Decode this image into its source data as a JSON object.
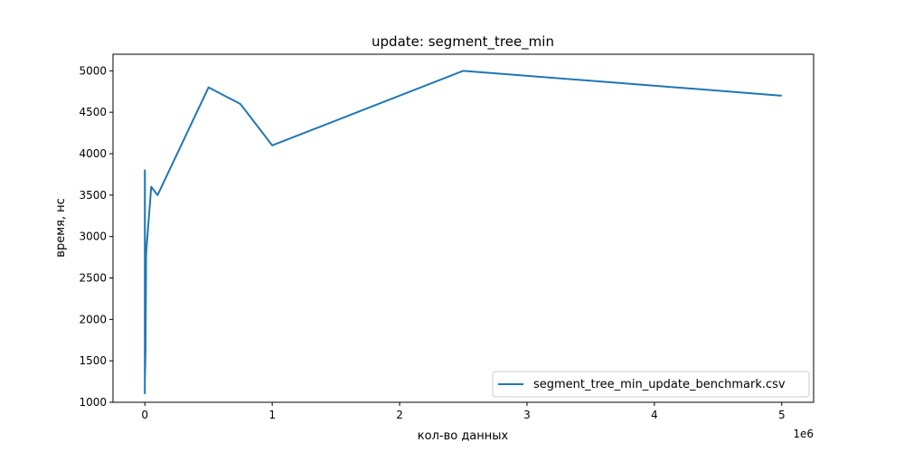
{
  "chart_data": {
    "type": "line",
    "title": "update: segment_tree_min",
    "xlabel": "кол-во данных",
    "ylabel": "время, нс",
    "x_offset_label": "1e6",
    "xlim": [
      -250000,
      5250000
    ],
    "ylim": [
      1000,
      5200
    ],
    "x_ticks": [
      0,
      1000000,
      2000000,
      3000000,
      4000000,
      5000000
    ],
    "x_tick_labels": [
      "0",
      "1",
      "2",
      "3",
      "4",
      "5"
    ],
    "y_ticks": [
      1000,
      1500,
      2000,
      2500,
      3000,
      3500,
      4000,
      4500,
      5000
    ],
    "y_tick_labels": [
      "1000",
      "1500",
      "2000",
      "2500",
      "3000",
      "3500",
      "4000",
      "4500",
      "5000"
    ],
    "grid": false,
    "legend_position": "lower-right",
    "series": [
      {
        "name": "segment_tree_min_update_benchmark.csv",
        "color": "#1f77b4",
        "x": [
          10,
          100,
          500,
          1000,
          5000,
          10000,
          50000,
          100000,
          500000,
          750000,
          1000000,
          2500000,
          5000000
        ],
        "y": [
          1100,
          3800,
          3750,
          1300,
          1600,
          2800,
          3600,
          3500,
          4800,
          4600,
          4100,
          5000,
          4700
        ]
      }
    ]
  }
}
